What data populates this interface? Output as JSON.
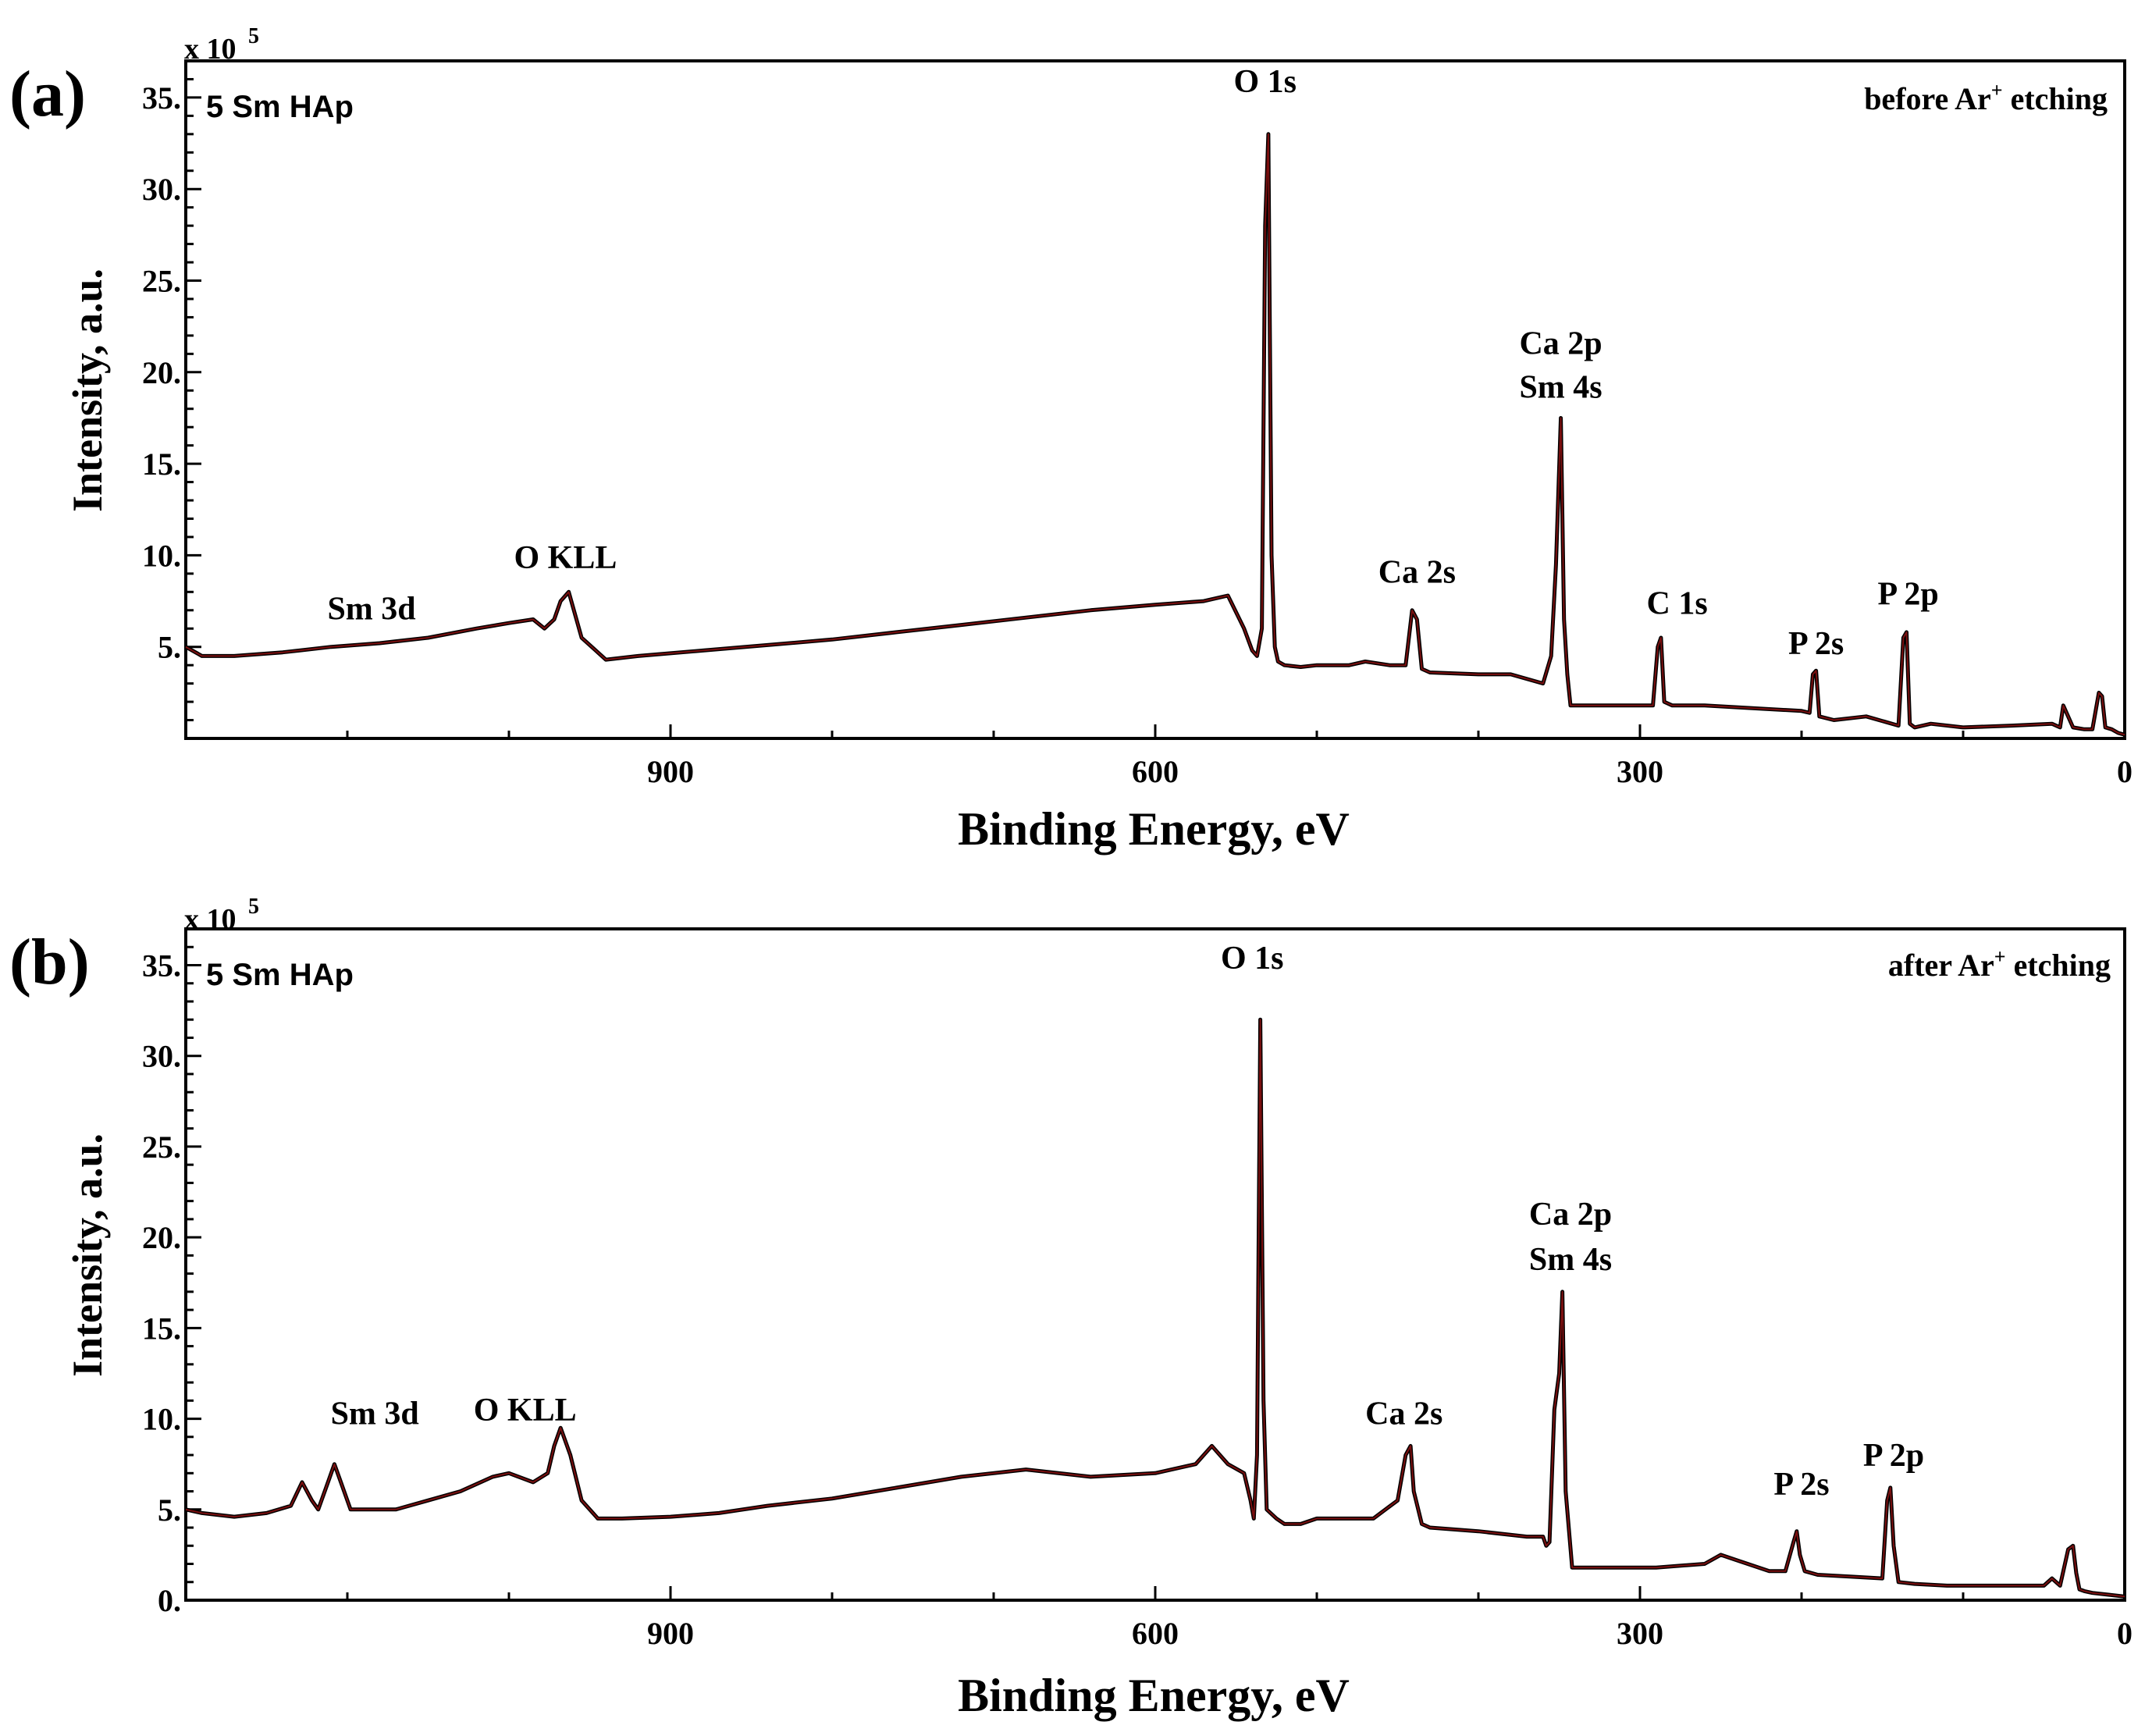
{
  "colors": {
    "trace": "#7a0f0f",
    "axis": "#000000",
    "background": "#ffffff"
  },
  "chart_data": [
    {
      "type": "line",
      "panel_label": "(a)",
      "sample_label": "5 Sm HAp",
      "condition_label": "before Ar",
      "condition_superscript": "+",
      "condition_suffix": " etching",
      "xlabel": "Binding Energy, eV",
      "ylabel": "Intensity, a.u.",
      "y_multiplier": "x 10",
      "y_multiplier_exp": "5",
      "xlim": [
        1200,
        0
      ],
      "ylim": [
        0,
        37
      ],
      "x_ticks": [
        900,
        600,
        300,
        0
      ],
      "x_tick_labels": [
        "900",
        "600",
        "300",
        "0"
      ],
      "y_ticks": [
        5,
        10,
        15,
        20,
        25,
        30,
        35
      ],
      "y_tick_labels": [
        "5.",
        "10.",
        "15.",
        "20.",
        "25.",
        "30.",
        "35."
      ],
      "series": [
        {
          "name": "survey spectrum",
          "x": [
            1200,
            1190,
            1170,
            1140,
            1110,
            1080,
            1050,
            1020,
            1000,
            985,
            978,
            972,
            968,
            963,
            955,
            940,
            920,
            880,
            840,
            800,
            760,
            720,
            680,
            640,
            600,
            570,
            555,
            545,
            540,
            537,
            534,
            532,
            530,
            528,
            526,
            524,
            520,
            510,
            500,
            480,
            470,
            455,
            445,
            441,
            438,
            435,
            430,
            400,
            380,
            360,
            355,
            352,
            349,
            347,
            345,
            343,
            341,
            338,
            320,
            300,
            292,
            289,
            287,
            285,
            280,
            260,
            240,
            200,
            195,
            193,
            191,
            189,
            180,
            160,
            140,
            137,
            135,
            133,
            130,
            120,
            100,
            70,
            45,
            40,
            38,
            32,
            25,
            20,
            16,
            14,
            12,
            8,
            4,
            0
          ],
          "y": [
            5.0,
            4.5,
            4.5,
            4.7,
            5.0,
            5.2,
            5.5,
            6.0,
            6.3,
            6.5,
            6.0,
            6.5,
            7.5,
            8.0,
            5.5,
            4.3,
            4.5,
            4.8,
            5.1,
            5.4,
            5.8,
            6.2,
            6.6,
            7.0,
            7.3,
            7.5,
            7.8,
            6.0,
            4.8,
            4.5,
            6.0,
            28.0,
            33.0,
            10.0,
            5.0,
            4.2,
            4.0,
            3.9,
            4.0,
            4.0,
            4.2,
            4.0,
            4.0,
            7.0,
            6.5,
            3.8,
            3.6,
            3.5,
            3.5,
            3.0,
            4.5,
            9.5,
            17.5,
            6.5,
            3.5,
            1.8,
            1.8,
            1.8,
            1.8,
            1.8,
            1.8,
            5.0,
            5.5,
            2.0,
            1.8,
            1.8,
            1.7,
            1.5,
            1.4,
            3.5,
            3.7,
            1.2,
            1.0,
            1.2,
            0.7,
            5.5,
            5.8,
            0.8,
            0.6,
            0.8,
            0.6,
            0.7,
            0.8,
            0.6,
            1.8,
            0.6,
            0.5,
            0.5,
            2.5,
            2.3,
            0.6,
            0.5,
            0.3,
            0.2
          ]
        }
      ],
      "annotations": [
        {
          "text": "Sm 3d",
          "x": 1085,
          "y": 6.5
        },
        {
          "text": "O KLL",
          "x": 965,
          "y": 9.3
        },
        {
          "text": "O 1s",
          "x": 532,
          "y": 35.3
        },
        {
          "text": "Ca 2s",
          "x": 438,
          "y": 8.5
        },
        {
          "text": "Ca 2p",
          "x": 349,
          "y": 21.0
        },
        {
          "text": "Sm 4s",
          "x": 349,
          "y": 18.6
        },
        {
          "text": "C 1s",
          "x": 277,
          "y": 6.8
        },
        {
          "text": "P 2s",
          "x": 191,
          "y": 4.6
        },
        {
          "text": "P 2p",
          "x": 134,
          "y": 7.3
        }
      ]
    },
    {
      "type": "line",
      "panel_label": "(b)",
      "sample_label": "5 Sm HAp",
      "condition_label": "after Ar",
      "condition_superscript": "+",
      "condition_suffix": " etching",
      "xlabel": "Binding Energy, eV",
      "ylabel": "Intensity, a.u.",
      "y_multiplier": "x 10",
      "y_multiplier_exp": "5",
      "xlim": [
        1200,
        0
      ],
      "ylim": [
        0,
        37
      ],
      "x_ticks": [
        900,
        600,
        300,
        0
      ],
      "x_tick_labels": [
        "900",
        "600",
        "300",
        "0"
      ],
      "y_ticks": [
        0,
        5,
        10,
        15,
        20,
        25,
        30,
        35
      ],
      "y_tick_labels": [
        "0.",
        "5.",
        "10.",
        "15.",
        "20.",
        "25.",
        "30.",
        "35."
      ],
      "series": [
        {
          "name": "survey spectrum",
          "x": [
            1200,
            1190,
            1170,
            1150,
            1135,
            1128,
            1122,
            1118,
            1112,
            1108,
            1104,
            1098,
            1090,
            1070,
            1050,
            1030,
            1010,
            1000,
            985,
            976,
            972,
            968,
            962,
            955,
            945,
            930,
            900,
            870,
            840,
            800,
            760,
            720,
            680,
            640,
            600,
            575,
            565,
            555,
            545,
            541,
            539,
            537,
            535,
            533,
            531,
            525,
            520,
            510,
            500,
            480,
            465,
            450,
            445,
            442,
            440,
            435,
            430,
            400,
            370,
            360,
            358,
            356,
            353,
            350,
            348,
            346,
            342,
            330,
            310,
            290,
            260,
            250,
            240,
            220,
            210,
            205,
            203,
            201,
            198,
            190,
            170,
            150,
            147,
            145,
            143,
            140,
            130,
            110,
            80,
            50,
            45,
            40,
            35,
            32,
            30,
            28,
            25,
            20,
            10,
            0
          ],
          "y": [
            5.0,
            4.8,
            4.6,
            4.8,
            5.2,
            6.5,
            5.5,
            5.0,
            6.5,
            7.5,
            6.5,
            5.0,
            5.0,
            5.0,
            5.5,
            6.0,
            6.8,
            7.0,
            6.5,
            7.0,
            8.5,
            9.5,
            8.0,
            5.5,
            4.5,
            4.5,
            4.6,
            4.8,
            5.2,
            5.6,
            6.2,
            6.8,
            7.2,
            6.8,
            7.0,
            7.5,
            8.5,
            7.5,
            7.0,
            5.5,
            4.5,
            8.0,
            32.0,
            11.0,
            5.0,
            4.5,
            4.2,
            4.2,
            4.5,
            4.5,
            4.5,
            5.5,
            8.0,
            8.5,
            6.0,
            4.2,
            4.0,
            3.8,
            3.5,
            3.5,
            3.0,
            3.2,
            10.5,
            12.5,
            17.0,
            6.0,
            1.8,
            1.8,
            1.8,
            1.8,
            2.0,
            2.5,
            2.2,
            1.6,
            1.6,
            3.2,
            3.8,
            2.5,
            1.6,
            1.4,
            1.3,
            1.2,
            5.5,
            6.2,
            3.0,
            1.0,
            0.9,
            0.8,
            0.8,
            0.8,
            1.2,
            0.8,
            2.8,
            3.0,
            1.5,
            0.6,
            0.5,
            0.4,
            0.3,
            0.2
          ]
        }
      ],
      "annotations": [
        {
          "text": "Sm 3d",
          "x": 1083,
          "y": 9.7
        },
        {
          "text": "O KLL",
          "x": 990,
          "y": 9.9
        },
        {
          "text": "O 1s",
          "x": 540,
          "y": 34.8
        },
        {
          "text": "Ca 2s",
          "x": 446,
          "y": 9.7
        },
        {
          "text": "Ca 2p",
          "x": 343,
          "y": 20.7
        },
        {
          "text": "Sm 4s",
          "x": 343,
          "y": 18.2
        },
        {
          "text": "P 2s",
          "x": 200,
          "y": 5.8
        },
        {
          "text": "P 2p",
          "x": 143,
          "y": 7.4
        }
      ]
    }
  ]
}
